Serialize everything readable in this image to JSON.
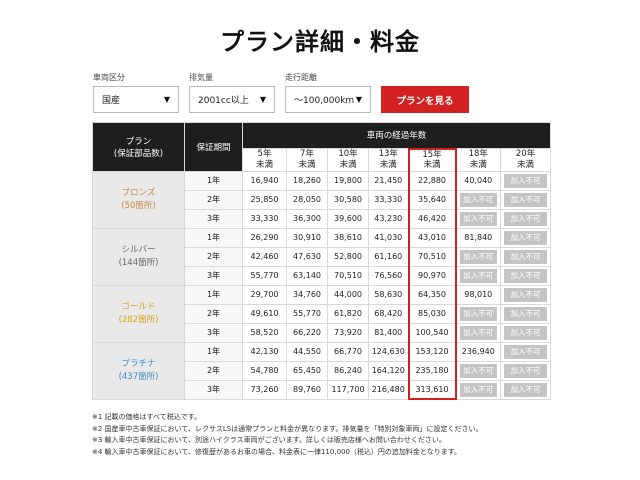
{
  "page_title": "プラン詳細・料金",
  "filters": [
    {
      "label": "車両区分",
      "value": "国産"
    },
    {
      "label": "排気量",
      "value": "2001cc以上"
    },
    {
      "label": "走行距離",
      "value": "～100,000km"
    }
  ],
  "submit_label": "プランを見る",
  "table": {
    "header_plan": "プラン",
    "header_plan_sub": "(保証部品数)",
    "header_period": "保証期間",
    "header_elapsed": "車両の経過年数",
    "years": [
      {
        "top": "5年",
        "bottom": "未満"
      },
      {
        "top": "7年",
        "bottom": "未満"
      },
      {
        "top": "10年",
        "bottom": "未満"
      },
      {
        "top": "13年",
        "bottom": "未満"
      },
      {
        "top": "15年",
        "bottom": "未満"
      },
      {
        "top": "18年",
        "bottom": "未満"
      },
      {
        "top": "20年",
        "bottom": "未満"
      }
    ],
    "plans": [
      {
        "name": "ブロンズ",
        "parts": "(50箇所)",
        "color": "#c8843a",
        "rows": [
          {
            "period": "1年",
            "prices": [
              "16,940",
              "18,260",
              "19,800",
              "21,450",
              "22,880",
              "40,040",
              "加入不可"
            ]
          },
          {
            "period": "2年",
            "prices": [
              "25,850",
              "28,050",
              "30,580",
              "33,330",
              "35,640",
              "加入不可",
              "加入不可"
            ]
          },
          {
            "period": "3年",
            "prices": [
              "33,330",
              "36,300",
              "39,600",
              "43,230",
              "46,420",
              "加入不可",
              "加入不可"
            ]
          }
        ]
      },
      {
        "name": "シルバー",
        "parts": "(144箇所)",
        "color": "#666666",
        "rows": [
          {
            "period": "1年",
            "prices": [
              "26,290",
              "30,910",
              "38,610",
              "41,030",
              "43,010",
              "81,840",
              "加入不可"
            ]
          },
          {
            "period": "2年",
            "prices": [
              "42,460",
              "47,630",
              "52,800",
              "61,160",
              "70,510",
              "加入不可",
              "加入不可"
            ]
          },
          {
            "period": "3年",
            "prices": [
              "55,770",
              "63,140",
              "70,510",
              "76,560",
              "90,970",
              "加入不可",
              "加入不可"
            ]
          }
        ]
      },
      {
        "name": "ゴールド",
        "parts": "(282箇所)",
        "color": "#d9a21a",
        "rows": [
          {
            "period": "1年",
            "prices": [
              "29,700",
              "34,760",
              "44,000",
              "58,630",
              "64,350",
              "98,010",
              "加入不可"
            ]
          },
          {
            "period": "2年",
            "prices": [
              "49,610",
              "55,770",
              "61,820",
              "68,420",
              "85,030",
              "加入不可",
              "加入不可"
            ]
          },
          {
            "period": "3年",
            "prices": [
              "58,520",
              "66,220",
              "73,920",
              "81,400",
              "100,540",
              "加入不可",
              "加入不可"
            ]
          }
        ]
      },
      {
        "name": "プラチナ",
        "parts": "(437箇所)",
        "color": "#3b8fc4",
        "rows": [
          {
            "period": "1年",
            "prices": [
              "42,130",
              "44,550",
              "66,770",
              "124,630",
              "153,120",
              "236,940",
              "加入不可"
            ]
          },
          {
            "period": "2年",
            "prices": [
              "54,780",
              "65,450",
              "86,240",
              "164,120",
              "235,180",
              "加入不可",
              "加入不可"
            ]
          },
          {
            "period": "3年",
            "prices": [
              "73,260",
              "89,760",
              "117,700",
              "216,480",
              "313,610",
              "加入不可",
              "加入不可"
            ]
          }
        ]
      }
    ]
  },
  "notes": [
    "※1 記載の価格はすべて税込です。",
    "※2 国産車中古車保証において、レクサスLSは通常プランと料金が異なります。排気量を「特別対象車両」に設定ください。",
    "※3 輸入車中古車保証において、別途ハイクラス車両がございます。詳しくは販売店様へお問い合わせください。",
    "※4 輸入車中古車保証において、修復歴があるお車の場合、料金表に一律110,000（税込）円の追加料金となります。"
  ]
}
